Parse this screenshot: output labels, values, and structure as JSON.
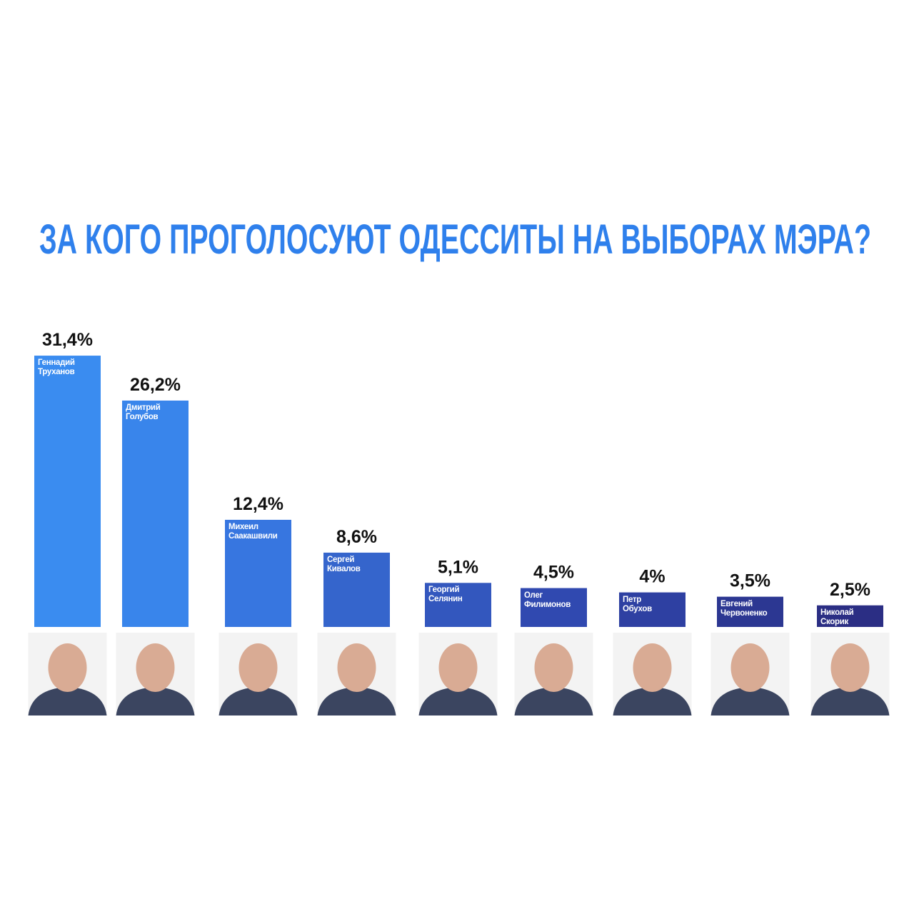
{
  "chart_data": {
    "type": "bar",
    "title": "ЗА КОГО ПРОГОЛОСУЮТ ОДЕССИТЫ НА ВЫБОРАХ МЭРА?",
    "categories": [
      "Геннадий Труханов",
      "Дмитрий Голубов",
      "Михеил Саакашвили",
      "Сергей Кивалов",
      "Георгий Селянин",
      "Олег Филимонов",
      "Петр Обухов",
      "Евгений Червоненко",
      "Николай Скорик"
    ],
    "values": [
      31.4,
      26.2,
      12.4,
      8.6,
      5.1,
      4.5,
      4,
      3.5,
      2.5
    ],
    "value_labels": [
      "31,4%",
      "26,2%",
      "12,4%",
      "8,6%",
      "5,1%",
      "4,5%",
      "4%",
      "3,5%",
      "2,5%"
    ],
    "colors": [
      "#3a8cf0",
      "#3985eb",
      "#3776e0",
      "#3565cc",
      "#3357be",
      "#3049b0",
      "#2e40a2",
      "#2c3792",
      "#2b2e84"
    ]
  }
}
